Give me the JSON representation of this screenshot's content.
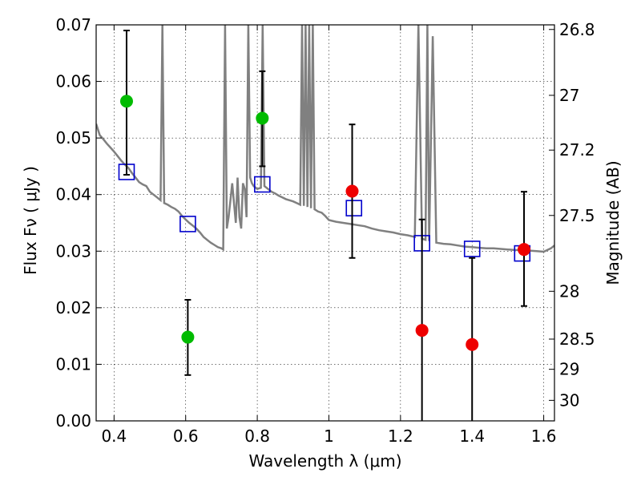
{
  "chart_data": {
    "type": "scatter",
    "xlabel": "Wavelength  λ (μm)",
    "ylabel": "Flux  Fν ( μJy )",
    "y2label": "Magnitude (AB)",
    "xlim": [
      0.35,
      1.63
    ],
    "ylim": [
      0.0,
      0.07
    ],
    "grid": true,
    "x_ticks": [
      {
        "v": 0.4,
        "label": "0.4"
      },
      {
        "v": 0.6,
        "label": "0.6"
      },
      {
        "v": 0.8,
        "label": "0.8"
      },
      {
        "v": 1.0,
        "label": "1"
      },
      {
        "v": 1.2,
        "label": "1.2"
      },
      {
        "v": 1.4,
        "label": "1.4"
      },
      {
        "v": 1.6,
        "label": "1.6"
      }
    ],
    "y_ticks": [
      {
        "v": 0.0,
        "label": "0.00"
      },
      {
        "v": 0.01,
        "label": "0.01"
      },
      {
        "v": 0.02,
        "label": "0.02"
      },
      {
        "v": 0.03,
        "label": "0.03"
      },
      {
        "v": 0.04,
        "label": "0.04"
      },
      {
        "v": 0.05,
        "label": "0.05"
      },
      {
        "v": 0.06,
        "label": "0.06"
      },
      {
        "v": 0.07,
        "label": "0.07"
      }
    ],
    "y2_ticks": [
      {
        "label": "26.8",
        "mag": 26.8
      },
      {
        "label": "27",
        "mag": 27.0
      },
      {
        "label": "27.2",
        "mag": 27.2
      },
      {
        "label": "27.5",
        "mag": 27.5
      },
      {
        "label": "28",
        "mag": 28.0
      },
      {
        "label": "28.5",
        "mag": 28.5
      },
      {
        "label": "29",
        "mag": 29.0
      },
      {
        "label": "30",
        "mag": 30.0
      }
    ],
    "series": [
      {
        "kind": "line",
        "color": "#808080",
        "points": [
          [
            0.35,
            0.0525
          ],
          [
            0.36,
            0.0505
          ],
          [
            0.37,
            0.0498
          ],
          [
            0.38,
            0.049
          ],
          [
            0.39,
            0.0483
          ],
          [
            0.4,
            0.0476
          ],
          [
            0.41,
            0.0468
          ],
          [
            0.42,
            0.046
          ],
          [
            0.43,
            0.0453
          ],
          [
            0.44,
            0.0447
          ],
          [
            0.45,
            0.0438
          ],
          [
            0.46,
            0.043
          ],
          [
            0.47,
            0.0422
          ],
          [
            0.48,
            0.0418
          ],
          [
            0.49,
            0.0415
          ],
          [
            0.5,
            0.0405
          ],
          [
            0.51,
            0.04
          ],
          [
            0.52,
            0.0395
          ],
          [
            0.53,
            0.039
          ],
          [
            0.535,
            0.07
          ],
          [
            0.54,
            0.0385
          ],
          [
            0.55,
            0.0382
          ],
          [
            0.56,
            0.0378
          ],
          [
            0.57,
            0.0375
          ],
          [
            0.58,
            0.037
          ],
          [
            0.59,
            0.0362
          ],
          [
            0.6,
            0.0356
          ],
          [
            0.61,
            0.035
          ],
          [
            0.62,
            0.0345
          ],
          [
            0.63,
            0.034
          ],
          [
            0.64,
            0.0333
          ],
          [
            0.65,
            0.0325
          ],
          [
            0.66,
            0.032
          ],
          [
            0.67,
            0.0315
          ],
          [
            0.68,
            0.0311
          ],
          [
            0.69,
            0.0307
          ],
          [
            0.7,
            0.0305
          ],
          [
            0.705,
            0.0303
          ],
          [
            0.71,
            0.07
          ],
          [
            0.715,
            0.034
          ],
          [
            0.72,
            0.036
          ],
          [
            0.725,
            0.039
          ],
          [
            0.73,
            0.042
          ],
          [
            0.74,
            0.035
          ],
          [
            0.745,
            0.043
          ],
          [
            0.75,
            0.036
          ],
          [
            0.755,
            0.034
          ],
          [
            0.76,
            0.042
          ],
          [
            0.765,
            0.041
          ],
          [
            0.77,
            0.036
          ],
          [
            0.775,
            0.07
          ],
          [
            0.78,
            0.043
          ],
          [
            0.785,
            0.042
          ],
          [
            0.79,
            0.0415
          ],
          [
            0.8,
            0.041
          ],
          [
            0.81,
            0.0412
          ],
          [
            0.815,
            0.07
          ],
          [
            0.82,
            0.0415
          ],
          [
            0.83,
            0.041
          ],
          [
            0.84,
            0.0405
          ],
          [
            0.85,
            0.0402
          ],
          [
            0.86,
            0.0398
          ],
          [
            0.87,
            0.0395
          ],
          [
            0.88,
            0.0392
          ],
          [
            0.89,
            0.039
          ],
          [
            0.9,
            0.0388
          ],
          [
            0.91,
            0.0385
          ],
          [
            0.92,
            0.0382
          ],
          [
            0.925,
            0.07
          ],
          [
            0.93,
            0.038
          ],
          [
            0.935,
            0.07
          ],
          [
            0.94,
            0.0378
          ],
          [
            0.945,
            0.07
          ],
          [
            0.95,
            0.0376
          ],
          [
            0.955,
            0.07
          ],
          [
            0.96,
            0.0374
          ],
          [
            0.97,
            0.037
          ],
          [
            0.98,
            0.0368
          ],
          [
            0.99,
            0.0362
          ],
          [
            1.0,
            0.0355
          ],
          [
            1.02,
            0.0352
          ],
          [
            1.04,
            0.035
          ],
          [
            1.06,
            0.0348
          ],
          [
            1.08,
            0.0346
          ],
          [
            1.1,
            0.0344
          ],
          [
            1.12,
            0.034
          ],
          [
            1.14,
            0.0337
          ],
          [
            1.16,
            0.0335
          ],
          [
            1.18,
            0.0333
          ],
          [
            1.2,
            0.033
          ],
          [
            1.22,
            0.0328
          ],
          [
            1.24,
            0.0325
          ],
          [
            1.25,
            0.07
          ],
          [
            1.26,
            0.0322
          ],
          [
            1.27,
            0.032
          ],
          [
            1.275,
            0.07
          ],
          [
            1.28,
            0.0318
          ],
          [
            1.29,
            0.068
          ],
          [
            1.3,
            0.0315
          ],
          [
            1.32,
            0.0313
          ],
          [
            1.34,
            0.0312
          ],
          [
            1.36,
            0.031
          ],
          [
            1.38,
            0.0308
          ],
          [
            1.4,
            0.0307
          ],
          [
            1.42,
            0.0306
          ],
          [
            1.44,
            0.0305
          ],
          [
            1.46,
            0.0305
          ],
          [
            1.48,
            0.0304
          ],
          [
            1.5,
            0.0303
          ],
          [
            1.52,
            0.0302
          ],
          [
            1.54,
            0.0302
          ],
          [
            1.56,
            0.0301
          ],
          [
            1.58,
            0.03
          ],
          [
            1.6,
            0.0299
          ],
          [
            1.62,
            0.0305
          ],
          [
            1.63,
            0.031
          ]
        ]
      },
      {
        "kind": "markers",
        "marker": "square-open",
        "color": "#0000cc",
        "points": [
          {
            "x": 0.435,
            "y": 0.044
          },
          {
            "x": 0.606,
            "y": 0.0348
          },
          {
            "x": 0.814,
            "y": 0.0418
          },
          {
            "x": 1.07,
            "y": 0.0376
          },
          {
            "x": 1.26,
            "y": 0.0314
          },
          {
            "x": 1.4,
            "y": 0.0304
          },
          {
            "x": 1.54,
            "y": 0.0296
          }
        ]
      },
      {
        "kind": "errorbar",
        "marker": "circle",
        "color": "#00bb00",
        "points": [
          {
            "x": 0.435,
            "y": 0.0565,
            "lo": 0.0435,
            "hi": 0.069
          },
          {
            "x": 0.606,
            "y": 0.0148,
            "lo": 0.0081,
            "hi": 0.0214
          },
          {
            "x": 0.814,
            "y": 0.0535,
            "lo": 0.045,
            "hi": 0.0618
          }
        ]
      },
      {
        "kind": "errorbar",
        "marker": "circle",
        "color": "#ee0000",
        "points": [
          {
            "x": 1.065,
            "y": 0.0406,
            "lo": 0.0288,
            "hi": 0.0524
          },
          {
            "x": 1.26,
            "y": 0.016,
            "lo": 0.0,
            "hi": 0.0356
          },
          {
            "x": 1.4,
            "y": 0.0135,
            "lo": 0.0,
            "hi": 0.0288
          },
          {
            "x": 1.545,
            "y": 0.0303,
            "lo": 0.0203,
            "hi": 0.0405
          }
        ]
      }
    ]
  }
}
